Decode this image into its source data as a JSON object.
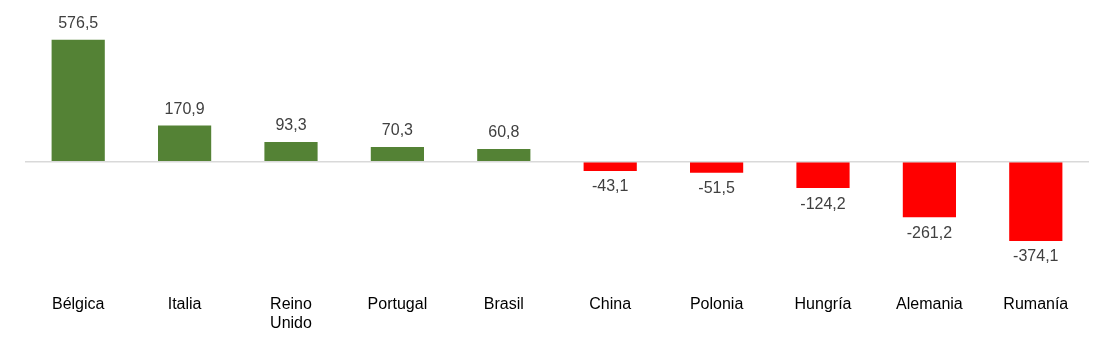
{
  "chart_data": {
    "type": "bar",
    "categories": [
      "Bélgica",
      "Italia",
      "Reino Unido",
      "Portugal",
      "Brasil",
      "China",
      "Polonia",
      "Hungría",
      "Alemania",
      "Rumanía"
    ],
    "values": [
      576.5,
      170.9,
      93.3,
      70.3,
      60.8,
      -43.1,
      -51.5,
      -124.2,
      -261.2,
      -374.1
    ],
    "colors": [
      "#548235",
      "#548235",
      "#548235",
      "#548235",
      "#548235",
      "#ff0000",
      "#ff0000",
      "#ff0000",
      "#ff0000",
      "#ff0000"
    ],
    "value_labels": [
      "576,5",
      "170,9",
      "93,3",
      "70,3",
      "60,8",
      "-43,1",
      "-51,5",
      "-124,2",
      "-261,2",
      "-374,1"
    ],
    "grid": false,
    "legend": false
  }
}
